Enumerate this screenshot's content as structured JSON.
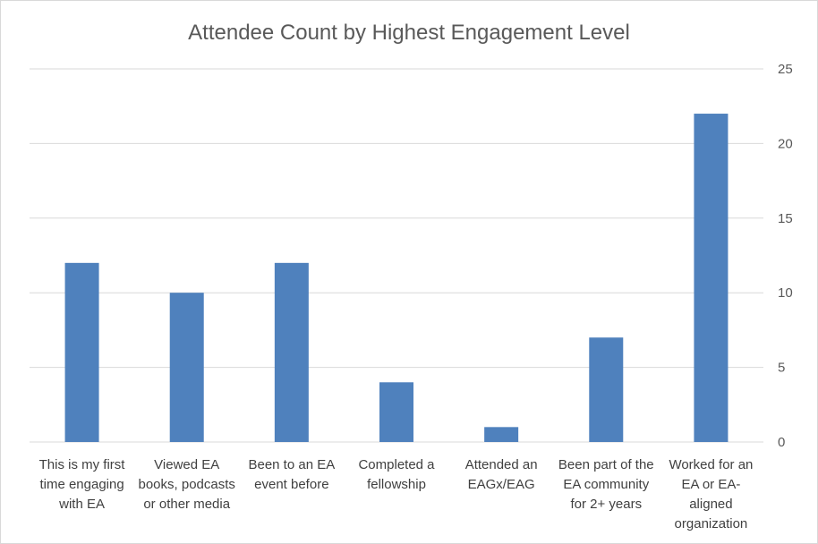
{
  "chart_data": {
    "type": "bar",
    "title": "Attendee Count by Highest Engagement Level",
    "xlabel": "",
    "ylabel": "",
    "ylim": [
      0,
      25
    ],
    "yticks": [
      0,
      5,
      10,
      15,
      20,
      25
    ],
    "y_axis_side": "right",
    "grid": true,
    "legend": "none",
    "bar_color": "#4f81bd",
    "categories": [
      [
        "This is my first",
        "time engaging",
        "with EA"
      ],
      [
        "Viewed EA",
        "books, podcasts",
        "or other media"
      ],
      [
        "Been to an EA",
        "event before"
      ],
      [
        "Completed a",
        "fellowship"
      ],
      [
        "Attended an",
        "EAGx/EAG"
      ],
      [
        "Been part of the",
        "EA community",
        "for 2+ years"
      ],
      [
        "Worked for an",
        "EA or EA-",
        "aligned",
        "organization"
      ]
    ],
    "values": [
      12,
      10,
      12,
      4,
      1,
      7,
      22
    ]
  }
}
